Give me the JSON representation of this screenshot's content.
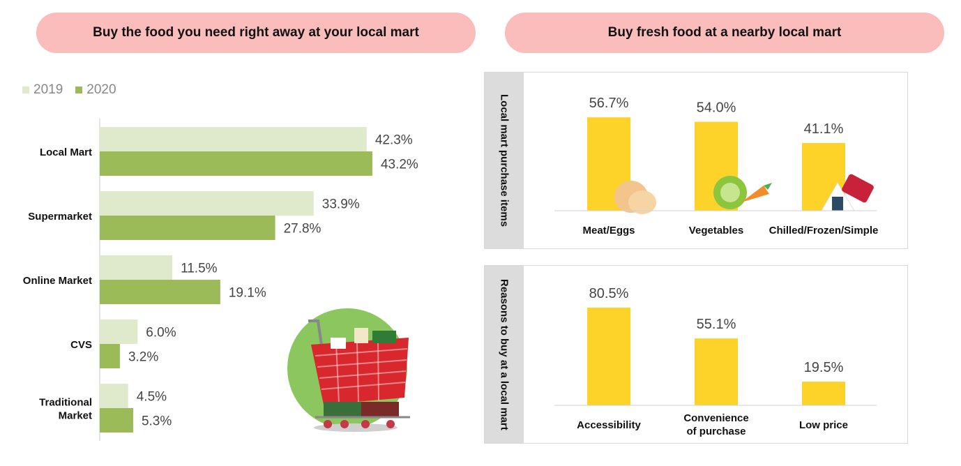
{
  "titles": {
    "left": "Buy the food you need right away at your local mart",
    "right": "Buy fresh food at a nearby local mart"
  },
  "colors": {
    "y2019": "#dfe9cc",
    "y2020": "#9bbb59",
    "yellow": "#fdd32a",
    "pill": "#fbbcbc",
    "side": "#dcdcdc"
  },
  "legend": {
    "y2019": "2019",
    "y2020": "2020"
  },
  "chart_data": [
    {
      "type": "bar",
      "orientation": "horizontal",
      "title": "Buy the food you need right away at your local mart",
      "categories": [
        "Local Mart",
        "Supermarket",
        "Online Market",
        "CVS",
        "Traditional Market"
      ],
      "series": [
        {
          "name": "2019",
          "values": [
            42.3,
            33.9,
            11.5,
            6.0,
            4.5
          ],
          "labels": [
            "42.3%",
            "33.9%",
            "11.5%",
            "6.0%",
            "4.5%"
          ]
        },
        {
          "name": "2020",
          "values": [
            43.2,
            27.8,
            19.1,
            3.2,
            5.3
          ],
          "labels": [
            "43.2%",
            "27.8%",
            "19.1%",
            "3.2%",
            "5.3%"
          ]
        }
      ],
      "xlim": [
        0,
        50
      ]
    },
    {
      "type": "bar",
      "title": "Local mart purchase items",
      "categories": [
        "Meat/Eggs",
        "Vegetables",
        "Chilled/Frozen/Simple"
      ],
      "values": [
        56.7,
        54.0,
        41.1
      ],
      "labels": [
        "56.7%",
        "54.0%",
        "41.1%"
      ],
      "ylim": [
        0,
        100
      ]
    },
    {
      "type": "bar",
      "title": "Reasons to buy at a local mart",
      "categories": [
        "Accessibility",
        "Convenience of purchase",
        "Low price"
      ],
      "values": [
        80.5,
        55.1,
        19.5
      ],
      "labels": [
        "80.5%",
        "55.1%",
        "19.5%"
      ],
      "ylim": [
        0,
        100
      ]
    }
  ],
  "panels": {
    "top": {
      "side_label": "Local mart purchase items"
    },
    "bottom": {
      "side_label": "Reasons to buy at a local mart"
    }
  },
  "icons": [
    "eggs-icon",
    "vegetables-icon",
    "rice-ball-icon",
    "shopping-cart-icon"
  ]
}
